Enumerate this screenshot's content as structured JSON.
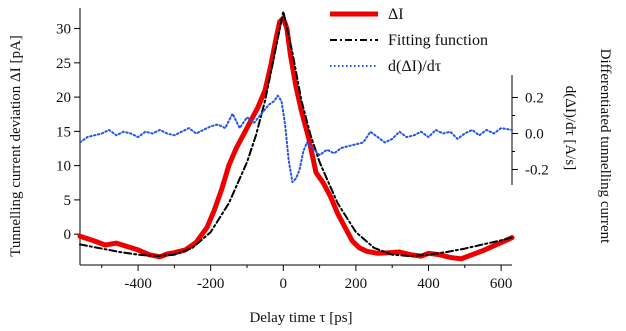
{
  "chart_data": {
    "type": "line",
    "xlabel": "Delay time τ [ps]",
    "ylabel": "Tunnelling current deviation ΔI [pA]",
    "y2label_outer": "Differentiated tunnelling current",
    "y2label_inner": "d(ΔI)/dτ [A/s]",
    "xlim": [
      -560,
      630
    ],
    "ylim": [
      -4.5,
      33
    ],
    "y2lim": [
      -0.2,
      0.2
    ],
    "xticks": [
      -400,
      -200,
      0,
      200,
      400,
      600
    ],
    "yticks": [
      0,
      5,
      10,
      15,
      20,
      25,
      30
    ],
    "y2ticks": [
      -0.2,
      0.0,
      0.2
    ],
    "xtick_labels": [
      "-400",
      "-200",
      "0",
      "200",
      "400",
      "600"
    ],
    "ytick_labels": [
      "0",
      "5",
      "10",
      "15",
      "20",
      "25",
      "30"
    ],
    "y2tick_labels": [
      "-0.2",
      "0.0",
      "0.2"
    ],
    "grid": false,
    "legend_position": "top-right",
    "series": [
      {
        "name": "ΔI",
        "axis": "left",
        "color": "#ee0000",
        "style": "solid",
        "x": [
          -560,
          -520,
          -490,
          -460,
          -430,
          -400,
          -370,
          -340,
          -320,
          -300,
          -270,
          -240,
          -210,
          -190,
          -170,
          -150,
          -130,
          -110,
          -90,
          -70,
          -50,
          -35,
          -20,
          -10,
          0,
          10,
          20,
          35,
          50,
          70,
          90,
          110,
          130,
          150,
          170,
          190,
          210,
          230,
          260,
          290,
          320,
          350,
          380,
          400,
          430,
          460,
          490,
          520,
          550,
          580,
          610,
          630
        ],
        "y": [
          -0.3,
          -1.0,
          -1.6,
          -1.3,
          -1.8,
          -2.3,
          -3.0,
          -3.3,
          -2.9,
          -2.7,
          -2.3,
          -1.2,
          1.0,
          3.5,
          6.5,
          10.0,
          12.5,
          14.5,
          16.5,
          18.5,
          21.0,
          24.5,
          28.5,
          31.0,
          31.5,
          30.0,
          26.0,
          21.5,
          18.0,
          14.0,
          9.0,
          7.5,
          5.5,
          3.0,
          1.0,
          -1.0,
          -2.0,
          -2.5,
          -2.8,
          -2.7,
          -2.6,
          -3.0,
          -3.2,
          -2.8,
          -3.0,
          -3.4,
          -3.6,
          -3.0,
          -2.4,
          -1.7,
          -1.0,
          -0.5
        ]
      },
      {
        "name": "Fitting function",
        "axis": "left",
        "color": "#000000",
        "style": "dashdot",
        "x": [
          -560,
          -500,
          -450,
          -400,
          -350,
          -300,
          -250,
          -200,
          -150,
          -100,
          -75,
          -50,
          -25,
          0,
          25,
          50,
          75,
          100,
          150,
          200,
          250,
          300,
          350,
          400,
          450,
          500,
          550,
          600,
          630
        ],
        "y": [
          -1.5,
          -2.1,
          -2.6,
          -3.0,
          -3.2,
          -3.0,
          -2.0,
          0.3,
          4.5,
          10.5,
          14.5,
          19.5,
          26.0,
          32.5,
          26.5,
          19.5,
          14.5,
          10.5,
          4.5,
          0.3,
          -2.0,
          -3.0,
          -3.2,
          -3.0,
          -2.6,
          -2.1,
          -1.5,
          -0.9,
          -0.5
        ]
      },
      {
        "name": "d(ΔI)/dτ",
        "axis": "right",
        "color": "#2255ee",
        "style": "dotted",
        "x": [
          -560,
          -540,
          -520,
          -500,
          -480,
          -460,
          -440,
          -420,
          -400,
          -380,
          -360,
          -340,
          -320,
          -300,
          -280,
          -260,
          -240,
          -220,
          -200,
          -180,
          -160,
          -140,
          -120,
          -100,
          -80,
          -60,
          -40,
          -25,
          -15,
          -5,
          5,
          15,
          25,
          35,
          45,
          55,
          65,
          80,
          100,
          120,
          140,
          160,
          180,
          200,
          220,
          240,
          260,
          280,
          300,
          320,
          340,
          360,
          380,
          400,
          420,
          440,
          460,
          480,
          500,
          520,
          540,
          560,
          580,
          600,
          630
        ],
        "y": [
          -0.05,
          -0.02,
          -0.01,
          0.0,
          0.02,
          -0.01,
          0.01,
          0.0,
          -0.02,
          0.01,
          0.0,
          0.02,
          0.0,
          -0.01,
          0.01,
          0.03,
          0.0,
          0.02,
          0.04,
          0.05,
          0.03,
          0.11,
          0.03,
          0.09,
          0.06,
          0.11,
          0.16,
          0.18,
          0.21,
          0.18,
          0.05,
          -0.15,
          -0.27,
          -0.25,
          -0.2,
          -0.1,
          -0.05,
          -0.08,
          -0.12,
          -0.09,
          -0.11,
          -0.08,
          -0.07,
          -0.06,
          -0.05,
          0.01,
          -0.02,
          -0.05,
          -0.03,
          0.01,
          -0.02,
          -0.01,
          0.01,
          -0.02,
          0.02,
          0.0,
          0.01,
          -0.03,
          0.0,
          0.02,
          -0.01,
          0.02,
          0.0,
          0.03,
          0.02
        ]
      }
    ]
  },
  "colors": {
    "axis": "#000000"
  }
}
